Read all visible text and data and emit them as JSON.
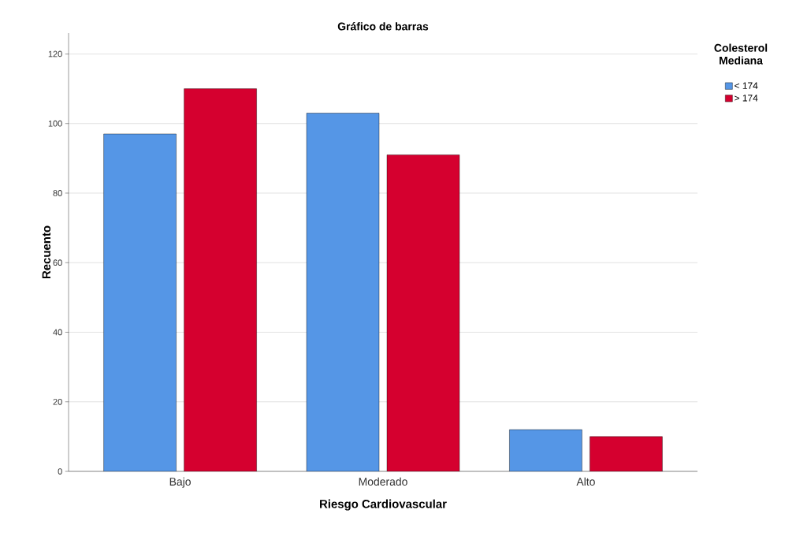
{
  "chart_data": {
    "type": "bar",
    "title": "Gráfico de barras",
    "xlabel": "Riesgo Cardiovascular",
    "ylabel": "Recuento",
    "legend_title": "Colesterol Mediana",
    "categories": [
      "Bajo",
      "Moderado",
      "Alto"
    ],
    "series": [
      {
        "name": "< 174",
        "color": "#5596e6",
        "values": [
          97,
          103,
          12
        ]
      },
      {
        "name": "> 174",
        "color": "#d5002f",
        "values": [
          110,
          91,
          10
        ]
      }
    ],
    "ylim": [
      0,
      126
    ],
    "yticks": [
      0,
      20,
      40,
      60,
      80,
      100,
      120
    ],
    "grid": "y",
    "legend": "top right"
  }
}
